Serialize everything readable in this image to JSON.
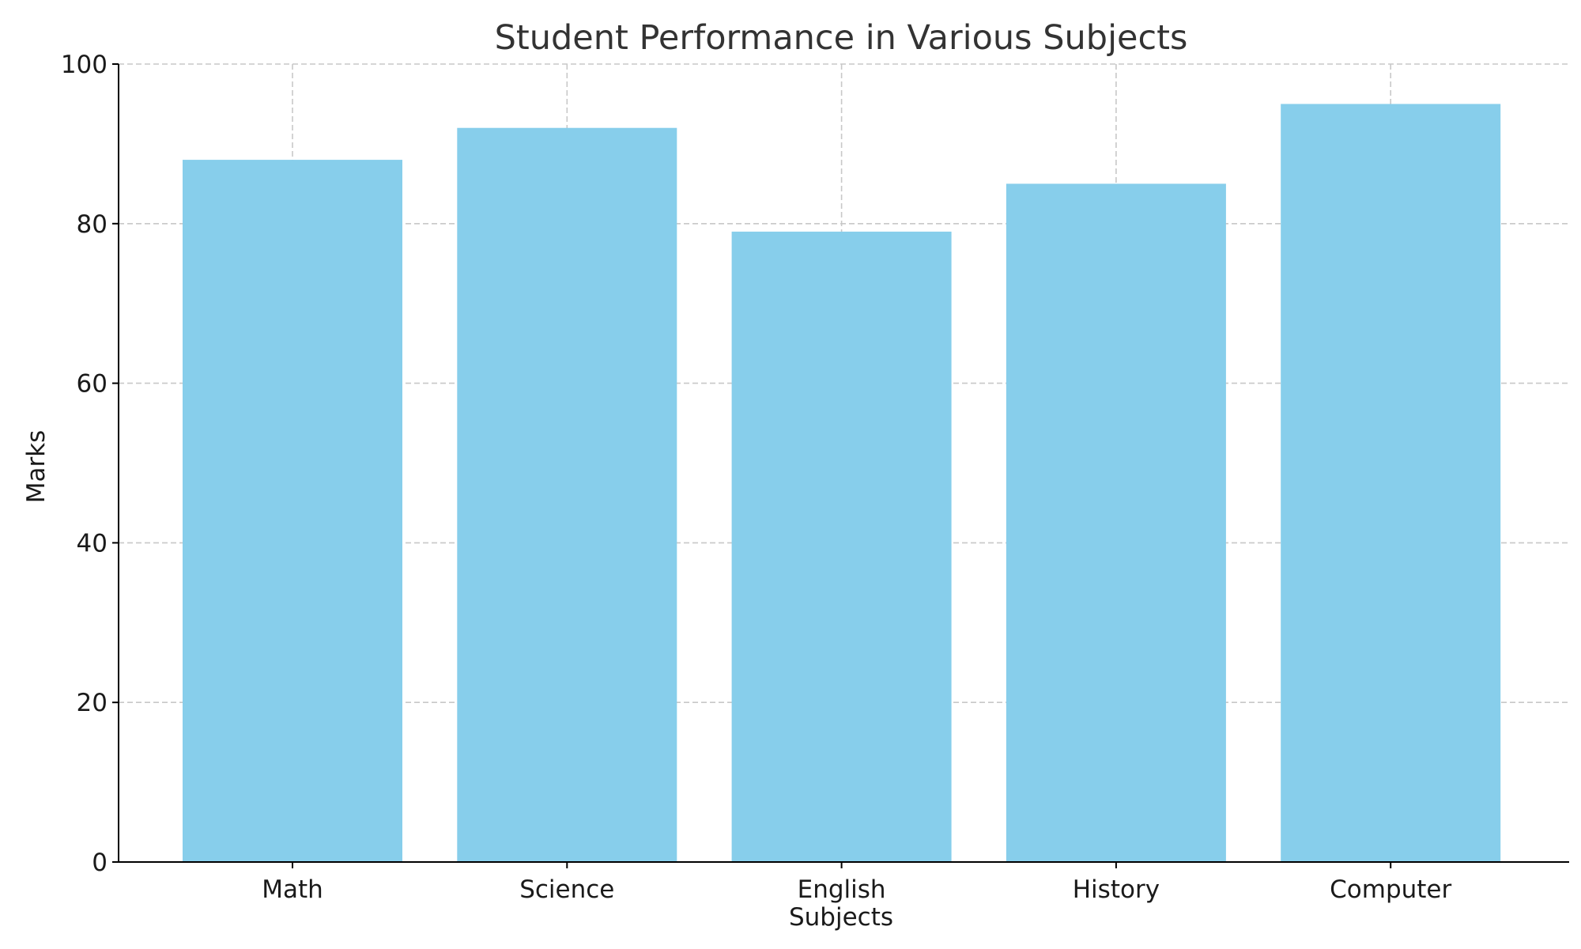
{
  "chart_data": {
    "type": "bar",
    "title": "Student Performance in Various Subjects",
    "xlabel": "Subjects",
    "ylabel": "Marks",
    "categories": [
      "Math",
      "Science",
      "English",
      "History",
      "Computer"
    ],
    "values": [
      88,
      92,
      79,
      85,
      95
    ],
    "ylim": [
      0,
      100
    ],
    "yticks": [
      "0",
      "20",
      "40",
      "60",
      "80",
      "100"
    ],
    "bar_color": "#87CEEB",
    "grid": true,
    "legend": "none"
  }
}
